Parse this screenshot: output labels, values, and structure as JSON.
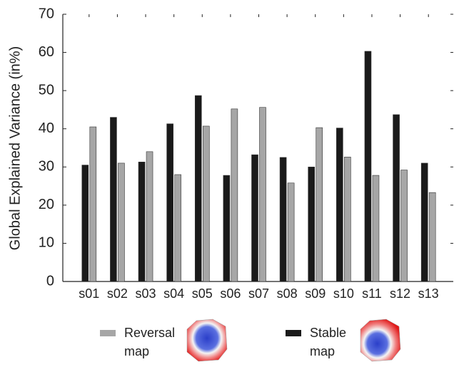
{
  "chart_data": {
    "type": "bar",
    "y_label": "Global Explained Variance (in%)",
    "categories": [
      "s01",
      "s02",
      "s03",
      "s04",
      "s05",
      "s06",
      "s07",
      "s08",
      "s09",
      "s10",
      "s11",
      "s12",
      "s13"
    ],
    "series": [
      {
        "name": "Stable map",
        "color": "#1a1a1a",
        "values": [
          30.5,
          43,
          31.3,
          41.3,
          48.7,
          27.8,
          33.2,
          32.5,
          30,
          40.2,
          60.3,
          43.7,
          31
        ]
      },
      {
        "name": "Reversal map",
        "color": "#a6a6a6",
        "values": [
          40.5,
          31,
          34,
          28,
          40.7,
          45.2,
          45.6,
          25.8,
          40.3,
          32.6,
          27.8,
          29.2,
          23.3
        ]
      }
    ],
    "ylim": [
      0,
      70
    ],
    "yticks": [
      0,
      10,
      20,
      30,
      40,
      50,
      60,
      70
    ]
  }
}
